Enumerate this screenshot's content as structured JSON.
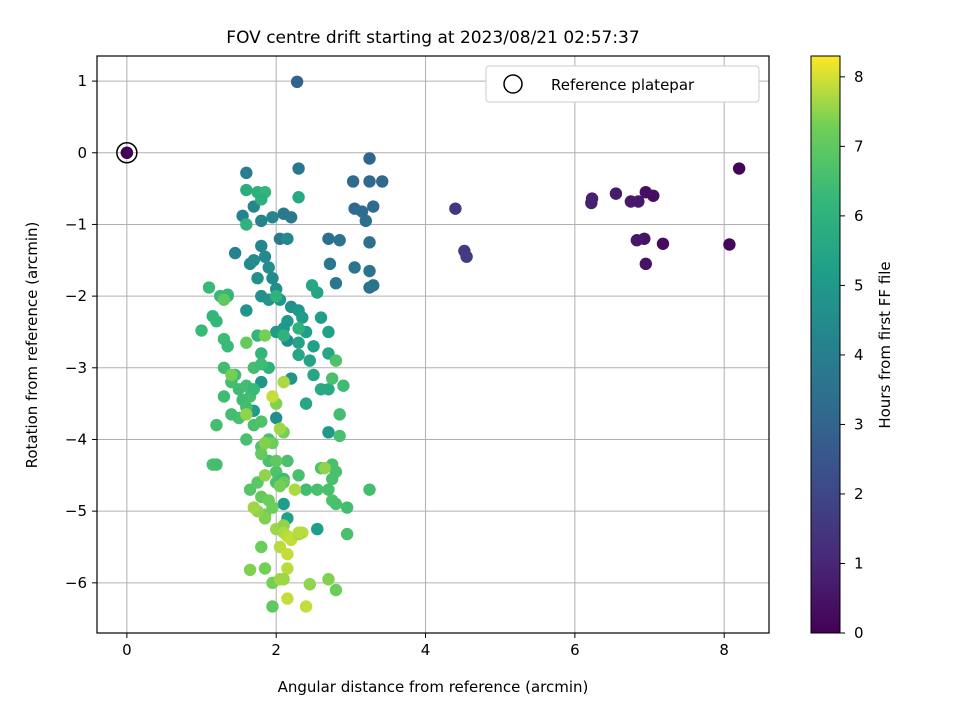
{
  "chart_data": {
    "type": "scatter",
    "title": "FOV centre drift starting at 2023/08/21 02:57:37",
    "xlabel": "Angular distance from reference (arcmin)",
    "ylabel": "Rotation from reference (arcmin)",
    "xlim": [
      -0.4,
      8.6
    ],
    "ylim": [
      -6.7,
      1.35
    ],
    "x_ticks": [
      0,
      2,
      4,
      6,
      8
    ],
    "y_ticks": [
      1,
      0,
      -1,
      -2,
      -3,
      -4,
      -5,
      -6
    ],
    "grid": true,
    "legend": {
      "position": "top-right",
      "entries": [
        "Reference platepar"
      ]
    },
    "colorbar": {
      "label": "Hours from first FF file",
      "range": [
        0,
        8.3
      ],
      "ticks": [
        0,
        1,
        2,
        3,
        4,
        5,
        6,
        7,
        8
      ],
      "colormap": "viridis"
    },
    "reference_point": {
      "x": 0,
      "y": 0,
      "hours": 0
    },
    "points": [
      [
        0,
        0,
        0
      ],
      [
        8.2,
        -0.22,
        0.1
      ],
      [
        8.07,
        -1.28,
        0.2
      ],
      [
        7.18,
        -1.27,
        0.3
      ],
      [
        7.05,
        -0.6,
        0.35
      ],
      [
        6.95,
        -0.55,
        0.4
      ],
      [
        6.95,
        -1.55,
        0.45
      ],
      [
        6.93,
        -1.2,
        0.5
      ],
      [
        6.85,
        -0.68,
        0.55
      ],
      [
        6.83,
        -1.22,
        0.6
      ],
      [
        6.75,
        -0.68,
        0.65
      ],
      [
        6.55,
        -0.57,
        0.7
      ],
      [
        6.23,
        -0.64,
        0.8
      ],
      [
        6.22,
        -0.7,
        0.85
      ],
      [
        4.4,
        -0.78,
        1.5
      ],
      [
        4.52,
        -1.37,
        1.6
      ],
      [
        4.55,
        -1.45,
        1.7
      ],
      [
        2.28,
        0.99,
        3.0
      ],
      [
        3.25,
        -0.08,
        3.0
      ],
      [
        3.42,
        -0.4,
        3.1
      ],
      [
        3.25,
        -0.4,
        3.15
      ],
      [
        3.03,
        -0.4,
        3.2
      ],
      [
        3.3,
        -0.75,
        3.2
      ],
      [
        3.05,
        -0.78,
        3.25
      ],
      [
        3.15,
        -0.82,
        3.3
      ],
      [
        3.2,
        -0.95,
        3.35
      ],
      [
        3.25,
        -1.25,
        3.4
      ],
      [
        2.7,
        -1.2,
        3.45
      ],
      [
        2.85,
        -1.22,
        3.5
      ],
      [
        3.3,
        -1.85,
        3.55
      ],
      [
        3.25,
        -1.88,
        3.6
      ],
      [
        3.25,
        -1.65,
        3.6
      ],
      [
        3.05,
        -1.6,
        3.65
      ],
      [
        2.8,
        -1.82,
        3.7
      ],
      [
        2.72,
        -1.55,
        3.7
      ],
      [
        2.3,
        -0.22,
        3.75
      ],
      [
        2.1,
        -0.85,
        3.8
      ],
      [
        2.05,
        -1.2,
        3.8
      ],
      [
        2.2,
        -0.9,
        3.85
      ],
      [
        1.6,
        -0.28,
        4.0
      ],
      [
        1.55,
        -0.88,
        4.2
      ],
      [
        1.7,
        -0.75,
        4.3
      ],
      [
        1.8,
        -0.95,
        4.2
      ],
      [
        1.95,
        -0.9,
        4.3
      ],
      [
        2.15,
        -1.2,
        4.4
      ],
      [
        1.45,
        -1.4,
        4.1
      ],
      [
        1.8,
        -1.3,
        4.3
      ],
      [
        1.85,
        -1.45,
        4.4
      ],
      [
        1.7,
        -1.5,
        4.5
      ],
      [
        1.65,
        -1.55,
        4.5
      ],
      [
        1.9,
        -1.6,
        4.6
      ],
      [
        1.95,
        -1.75,
        4.5
      ],
      [
        2.0,
        -1.9,
        4.6
      ],
      [
        1.75,
        -1.75,
        4.7
      ],
      [
        1.8,
        -2.0,
        4.7
      ],
      [
        1.6,
        -2.2,
        4.8
      ],
      [
        1.9,
        -2.05,
        4.8
      ],
      [
        2.05,
        -2.05,
        4.9
      ],
      [
        2.2,
        -2.15,
        4.7
      ],
      [
        2.3,
        -2.2,
        4.9
      ],
      [
        2.15,
        -2.35,
        5.0
      ],
      [
        2.1,
        -2.45,
        5.0
      ],
      [
        2.0,
        -2.5,
        5.1
      ],
      [
        2.35,
        -2.3,
        5.1
      ],
      [
        2.4,
        -2.5,
        5.2
      ],
      [
        2.6,
        -2.3,
        5.2
      ],
      [
        2.5,
        -2.7,
        5.3
      ],
      [
        2.7,
        -2.5,
        5.3
      ],
      [
        2.15,
        -2.62,
        4.5
      ],
      [
        2.3,
        -2.65,
        5.4
      ],
      [
        2.3,
        -2.82,
        5.5
      ],
      [
        2.45,
        -2.9,
        5.4
      ],
      [
        2.7,
        -2.8,
        5.5
      ],
      [
        2.55,
        -1.95,
        5.4
      ],
      [
        2.48,
        -1.85,
        5.5
      ],
      [
        2.5,
        -3.1,
        5.5
      ],
      [
        2.6,
        -3.3,
        5.6
      ],
      [
        2.7,
        -3.3,
        5.6
      ],
      [
        2.4,
        -3.5,
        5.5
      ],
      [
        2.2,
        -3.15,
        4.8
      ],
      [
        2.0,
        -3.7,
        4.6
      ],
      [
        1.8,
        -3.2,
        4.9
      ],
      [
        1.7,
        -3.6,
        5.1
      ],
      [
        2.1,
        -4.9,
        5.2
      ],
      [
        2.15,
        -5.1,
        5.3
      ],
      [
        2.7,
        -3.9,
        5.0
      ],
      [
        2.55,
        -5.25,
        5.2
      ],
      [
        2.3,
        -0.62,
        5.6
      ],
      [
        1.6,
        -0.52,
        5.8
      ],
      [
        1.75,
        -0.55,
        5.9
      ],
      [
        1.8,
        -0.6,
        6.0
      ],
      [
        1.85,
        -0.55,
        6.1
      ],
      [
        1.8,
        -0.65,
        5.9
      ],
      [
        1.6,
        -1.0,
        6.0
      ],
      [
        2.1,
        -2.55,
        6.0
      ],
      [
        1.9,
        -3.0,
        6.0
      ],
      [
        1.8,
        -2.8,
        6.1
      ],
      [
        1.75,
        -2.55,
        6.2
      ],
      [
        2.3,
        -2.45,
        6.0
      ],
      [
        2.0,
        -2.0,
        6.0
      ],
      [
        1.1,
        -1.88,
        6.3
      ],
      [
        1.15,
        -2.28,
        6.2
      ],
      [
        1.2,
        -2.35,
        6.2
      ],
      [
        1.25,
        -2.0,
        6.3
      ],
      [
        1.35,
        -2.0,
        6.3
      ],
      [
        1.35,
        -1.98,
        6.2
      ],
      [
        1.0,
        -2.48,
        6.3
      ],
      [
        1.3,
        -2.6,
        6.4
      ],
      [
        1.35,
        -2.7,
        6.3
      ],
      [
        1.3,
        -3.0,
        6.4
      ],
      [
        1.4,
        -3.2,
        6.5
      ],
      [
        1.45,
        -3.1,
        6.4
      ],
      [
        1.5,
        -3.3,
        6.4
      ],
      [
        1.6,
        -3.25,
        6.5
      ],
      [
        1.55,
        -3.45,
        6.4
      ],
      [
        1.65,
        -3.4,
        6.5
      ],
      [
        1.7,
        -3.3,
        6.3
      ],
      [
        1.7,
        -3.0,
        6.5
      ],
      [
        1.8,
        -2.95,
        6.4
      ],
      [
        1.6,
        -3.55,
        6.5
      ],
      [
        1.5,
        -3.7,
        6.6
      ],
      [
        1.4,
        -3.65,
        6.5
      ],
      [
        1.3,
        -3.4,
        6.4
      ],
      [
        1.2,
        -3.8,
        6.5
      ],
      [
        1.15,
        -4.35,
        6.6
      ],
      [
        1.2,
        -4.35,
        6.5
      ],
      [
        1.6,
        -4.0,
        6.6
      ],
      [
        1.7,
        -3.8,
        6.6
      ],
      [
        1.8,
        -3.75,
        6.7
      ],
      [
        1.8,
        -4.1,
        6.7
      ],
      [
        1.9,
        -4.0,
        6.6
      ],
      [
        1.9,
        -4.3,
        6.6
      ],
      [
        2.0,
        -4.45,
        6.7
      ],
      [
        2.0,
        -4.6,
        6.6
      ],
      [
        2.15,
        -4.3,
        6.6
      ],
      [
        2.3,
        -4.5,
        6.6
      ],
      [
        2.4,
        -4.7,
        6.5
      ],
      [
        2.55,
        -4.7,
        6.6
      ],
      [
        2.7,
        -4.7,
        6.6
      ],
      [
        2.75,
        -4.85,
        6.7
      ],
      [
        2.75,
        -4.55,
        6.6
      ],
      [
        2.6,
        -4.4,
        6.7
      ],
      [
        2.75,
        -4.35,
        6.6
      ],
      [
        2.8,
        -4.45,
        6.6
      ],
      [
        2.8,
        -4.9,
        6.6
      ],
      [
        2.95,
        -4.95,
        6.5
      ],
      [
        3.25,
        -4.7,
        6.5
      ],
      [
        2.95,
        -5.32,
        6.6
      ],
      [
        2.85,
        -3.65,
        6.5
      ],
      [
        2.9,
        -3.25,
        6.4
      ],
      [
        2.75,
        -3.15,
        6.6
      ],
      [
        2.85,
        -3.95,
        6.6
      ],
      [
        2.8,
        -2.9,
        6.7
      ],
      [
        2.1,
        -4.55,
        6.4
      ],
      [
        1.65,
        -4.7,
        6.8
      ],
      [
        1.75,
        -4.6,
        6.9
      ],
      [
        1.85,
        -5.05,
        7.3
      ],
      [
        1.8,
        -4.8,
        7.1
      ],
      [
        1.9,
        -4.85,
        7.2
      ],
      [
        1.95,
        -4.95,
        7.2
      ],
      [
        1.85,
        -5.1,
        7.4
      ],
      [
        1.75,
        -5.0,
        7.5
      ],
      [
        1.7,
        -4.95,
        7.6
      ],
      [
        2.0,
        -5.25,
        7.6
      ],
      [
        2.1,
        -5.2,
        7.5
      ],
      [
        2.1,
        -5.3,
        7.7
      ],
      [
        2.15,
        -5.35,
        7.8
      ],
      [
        2.2,
        -5.4,
        7.9
      ],
      [
        2.05,
        -5.5,
        7.8
      ],
      [
        1.8,
        -5.5,
        7.2
      ],
      [
        2.15,
        -5.6,
        7.9
      ],
      [
        2.15,
        -5.8,
        7.8
      ],
      [
        1.85,
        -5.8,
        7.3
      ],
      [
        1.65,
        -5.82,
        7.4
      ],
      [
        1.95,
        -6.0,
        7.3
      ],
      [
        2.05,
        -5.95,
        7.6
      ],
      [
        1.95,
        -6.33,
        7.0
      ],
      [
        2.15,
        -6.22,
        7.9
      ],
      [
        2.35,
        -5.3,
        7.8
      ],
      [
        2.3,
        -5.32,
        7.6
      ],
      [
        2.45,
        -6.02,
        7.5
      ],
      [
        2.4,
        -6.33,
        7.9
      ],
      [
        2.7,
        -5.95,
        7.4
      ],
      [
        2.8,
        -6.1,
        7.2
      ],
      [
        2.65,
        -4.4,
        7.5
      ],
      [
        2.25,
        -4.7,
        7.7
      ],
      [
        2.1,
        -4.6,
        7.1
      ],
      [
        2.05,
        -4.65,
        7.3
      ],
      [
        2.0,
        -4.3,
        7.0
      ],
      [
        1.95,
        -4.05,
        7.2
      ],
      [
        1.85,
        -4.5,
        7.5
      ],
      [
        1.8,
        -4.2,
        7.1
      ],
      [
        1.85,
        -4.05,
        7.4
      ],
      [
        2.1,
        -3.9,
        7.3
      ],
      [
        2.05,
        -3.85,
        7.6
      ],
      [
        2.0,
        -3.5,
        7.4
      ],
      [
        2.1,
        -3.2,
        7.7
      ],
      [
        1.95,
        -3.4,
        7.9
      ],
      [
        1.4,
        -3.1,
        7.3
      ],
      [
        1.6,
        -3.65,
        7.5
      ],
      [
        1.6,
        -2.65,
        7.1
      ],
      [
        1.85,
        -2.55,
        7.3
      ],
      [
        1.3,
        -2.05,
        7.0
      ],
      [
        2.1,
        -5.95,
        7.6
      ],
      [
        2.3,
        -5.3,
        7.8
      ]
    ]
  }
}
